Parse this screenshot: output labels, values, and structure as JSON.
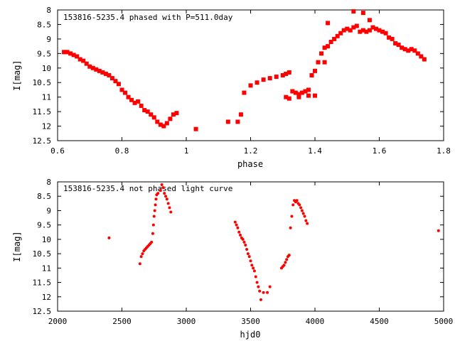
{
  "chart_data": [
    {
      "type": "scatter",
      "title": "153816-5235.4 phased with P=511.0day",
      "xlabel": "phase",
      "ylabel": "I[mag]",
      "xlim": [
        0.6,
        1.8
      ],
      "ylim": [
        12.5,
        8
      ],
      "y_inverted": true,
      "x_ticks": [
        "0.6",
        "0.8",
        "1",
        "1.2",
        "1.4",
        "1.6",
        "1.8"
      ],
      "y_ticks": [
        "8",
        "8.5",
        "9",
        "9.5",
        "10",
        "10.5",
        "11",
        "11.5",
        "12",
        "12.5"
      ],
      "grid": false,
      "marker_color": "#ff0000",
      "series": [
        {
          "x": [
            0.62,
            0.63,
            0.64,
            0.65,
            0.66,
            0.67,
            0.68,
            0.69,
            0.7,
            0.71,
            0.72,
            0.73,
            0.74,
            0.75,
            0.76,
            0.77,
            0.78,
            0.79,
            0.8,
            0.81,
            0.82,
            0.83,
            0.84,
            0.85,
            0.86,
            0.87,
            0.88,
            0.89,
            0.9,
            0.91,
            0.92,
            0.93,
            0.94,
            0.95,
            0.96,
            0.97,
            1.03,
            1.13,
            1.16,
            1.17,
            1.18,
            1.2,
            1.22,
            1.24,
            1.26,
            1.28,
            1.3,
            1.31,
            1.32,
            1.33,
            1.34,
            1.35,
            1.36,
            1.37,
            1.38,
            1.39,
            1.4,
            1.41,
            1.42,
            1.43,
            1.44,
            1.45,
            1.46,
            1.47,
            1.48,
            1.49,
            1.5,
            1.51,
            1.52,
            1.53,
            1.54,
            1.55,
            1.56,
            1.57,
            1.58,
            1.59,
            1.6,
            1.61,
            1.62,
            1.63,
            1.64,
            1.65,
            1.66,
            1.67,
            1.68,
            1.69,
            1.7,
            1.71,
            1.72,
            1.73,
            1.74
          ],
          "y": [
            9.45,
            9.45,
            9.5,
            9.55,
            9.6,
            9.7,
            9.75,
            9.85,
            9.95,
            10.0,
            10.05,
            10.1,
            10.15,
            10.2,
            10.25,
            10.35,
            10.45,
            10.55,
            10.75,
            10.85,
            11.0,
            11.1,
            11.2,
            11.15,
            11.3,
            11.45,
            11.5,
            11.6,
            11.7,
            11.85,
            11.95,
            12.0,
            11.9,
            11.75,
            11.6,
            11.55,
            12.1,
            11.85,
            11.85,
            11.6,
            10.85,
            10.6,
            10.5,
            10.4,
            10.35,
            10.3,
            10.25,
            10.2,
            10.15,
            10.8,
            10.85,
            10.9,
            10.85,
            10.8,
            10.75,
            10.25,
            10.1,
            9.8,
            9.5,
            9.3,
            9.25,
            9.1,
            9.0,
            8.9,
            8.8,
            8.7,
            8.65,
            8.7,
            8.6,
            8.55,
            8.75,
            8.7,
            8.75,
            8.7,
            8.6,
            8.65,
            8.7,
            8.75,
            8.8,
            8.95,
            9.0,
            9.15,
            9.2,
            9.3,
            9.35,
            9.4,
            9.35,
            9.4,
            9.5,
            9.6,
            9.7
          ]
        },
        {
          "x": [
            1.31,
            1.32,
            1.35,
            1.38,
            1.4,
            1.43,
            1.44,
            1.52,
            1.55,
            1.57
          ],
          "y": [
            11.0,
            11.05,
            11.0,
            10.95,
            10.95,
            9.8,
            8.45,
            8.05,
            8.1,
            8.35
          ]
        }
      ]
    },
    {
      "type": "scatter",
      "title": "153816-5235.4 not phased light curve",
      "xlabel": "hjd0",
      "ylabel": "I[mag]",
      "xlim": [
        2000,
        5000
      ],
      "ylim": [
        12.5,
        8
      ],
      "y_inverted": true,
      "x_ticks": [
        "2000",
        "2500",
        "3000",
        "3500",
        "4000",
        "4500",
        "5000"
      ],
      "y_ticks": [
        "8",
        "8.5",
        "9",
        "9.5",
        "10",
        "10.5",
        "11",
        "11.5",
        "12",
        "12.5"
      ],
      "grid": false,
      "marker_color": "#ff0000",
      "series": [
        {
          "x": [
            2400,
            2640,
            2650,
            2660,
            2670,
            2680,
            2690,
            2700,
            2710,
            2720,
            2730,
            2740,
            2745,
            2750,
            2755,
            2760,
            2765,
            2770,
            2780,
            2800,
            2810,
            2820,
            2830,
            2840,
            2850,
            2860,
            2870,
            2880,
            3380,
            3390,
            3400,
            3410,
            3420,
            3430,
            3440,
            3450,
            3460,
            3470,
            3480,
            3490,
            3500,
            3510,
            3520,
            3530,
            3540,
            3550,
            3560,
            3570,
            3580,
            3600,
            3630,
            3650,
            3740,
            3750,
            3760,
            3770,
            3780,
            3790,
            3800,
            3810,
            3820,
            3830,
            3840,
            3850,
            3860,
            3870,
            3880,
            3890,
            3900,
            3910,
            3920,
            3930,
            3940,
            4960
          ],
          "y": [
            9.95,
            10.85,
            10.6,
            10.5,
            10.4,
            10.35,
            10.3,
            10.25,
            10.2,
            10.15,
            10.1,
            9.8,
            9.5,
            9.2,
            9.0,
            8.8,
            8.6,
            8.45,
            8.4,
            8.3,
            8.1,
            8.2,
            8.4,
            8.5,
            8.6,
            8.75,
            8.9,
            9.05,
            9.4,
            9.5,
            9.6,
            9.75,
            9.85,
            9.95,
            10.0,
            10.1,
            10.2,
            10.35,
            10.5,
            10.6,
            10.75,
            10.9,
            11.0,
            11.1,
            11.3,
            11.5,
            11.65,
            11.8,
            12.1,
            11.85,
            11.85,
            11.65,
            11.0,
            10.95,
            10.9,
            10.8,
            10.7,
            10.6,
            10.55,
            9.6,
            9.2,
            8.8,
            8.65,
            8.7,
            8.65,
            8.75,
            8.8,
            8.9,
            9.0,
            9.1,
            9.2,
            9.35,
            9.45,
            9.7
          ]
        }
      ]
    }
  ]
}
